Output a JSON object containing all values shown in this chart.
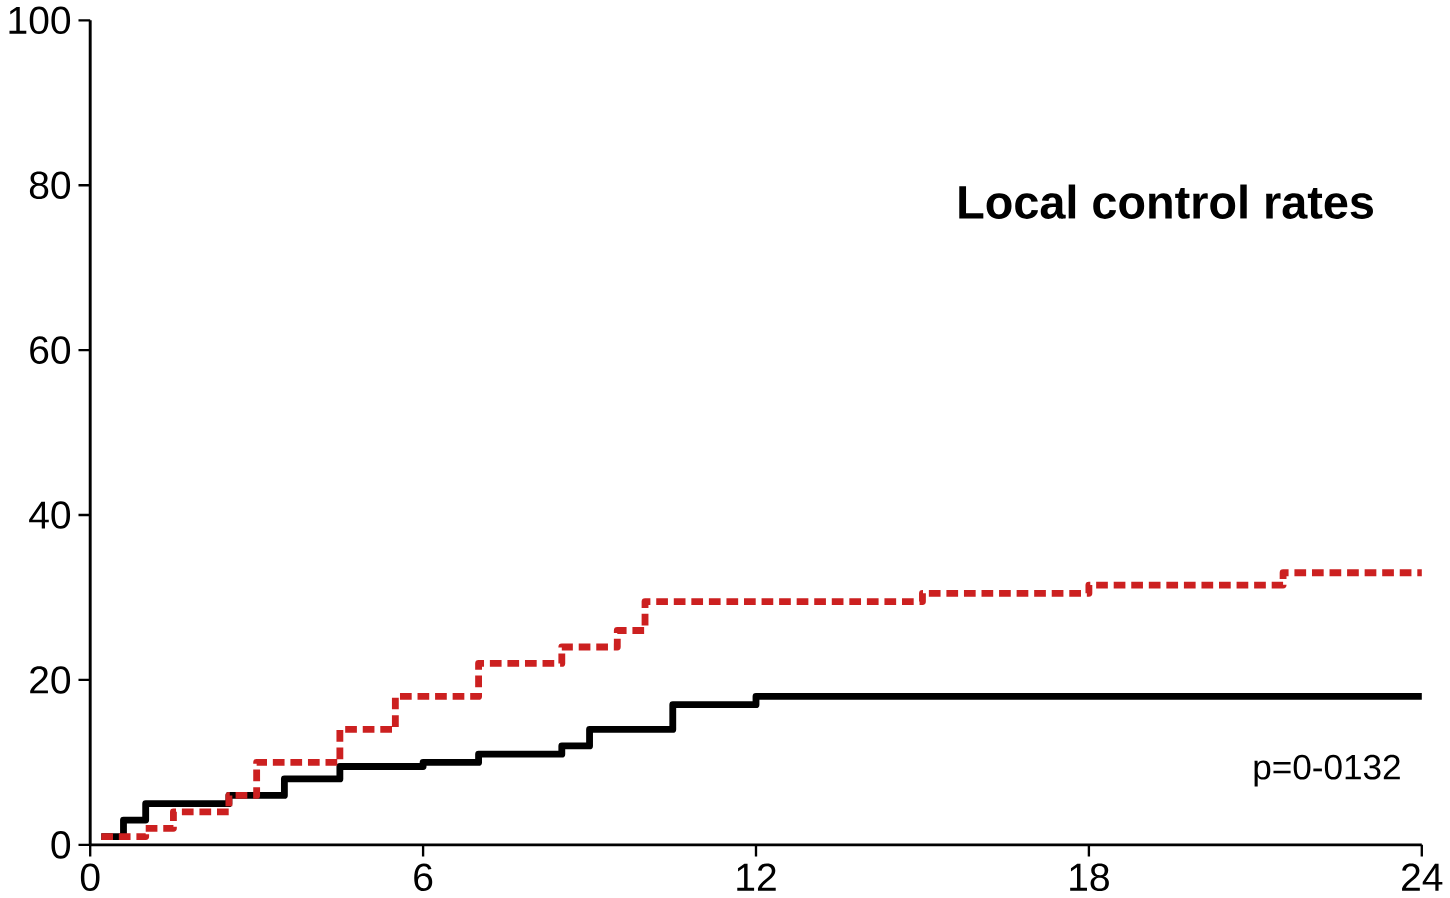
{
  "chart_data": {
    "type": "step",
    "annotations": [
      "Local control rates",
      "p=0-0132"
    ],
    "xlim": [
      0,
      24
    ],
    "ylim": [
      0,
      100
    ],
    "xticks": [
      0,
      6,
      12,
      18,
      24
    ],
    "yticks": [
      0,
      20,
      40,
      60,
      80,
      100
    ],
    "series": [
      {
        "color": "#000000",
        "line_style": "solid",
        "x": [
          0.2,
          0.6,
          1,
          2.5,
          3.5,
          4.5,
          6,
          7,
          8.5,
          9,
          10.5,
          12,
          24
        ],
        "values": [
          1,
          3,
          5,
          6,
          8,
          9.5,
          10,
          11,
          12,
          14,
          17,
          18,
          18
        ]
      },
      {
        "color": "#cc2020",
        "line_style": "dashed",
        "x": [
          0.2,
          1,
          1.5,
          2.5,
          3,
          4.5,
          5.5,
          7,
          8.5,
          9.5,
          10,
          15,
          18,
          21.5,
          24
        ],
        "values": [
          1,
          2,
          4,
          6,
          10,
          14,
          18,
          22,
          24,
          26,
          29.5,
          30.5,
          31.5,
          33,
          33
        ]
      }
    ]
  }
}
